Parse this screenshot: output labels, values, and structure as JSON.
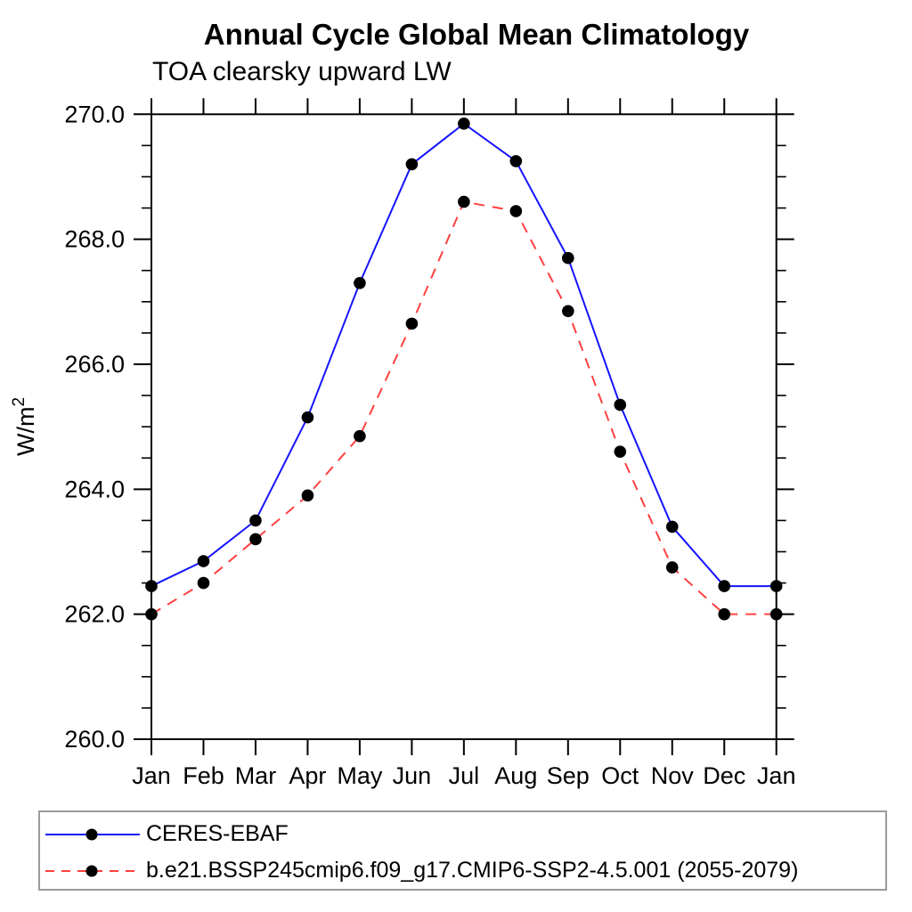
{
  "page": {
    "background": "#ffffff"
  },
  "chart_data": {
    "type": "line",
    "title": "Annual Cycle Global Mean Climatology",
    "subtitle": "TOA clearsky upward LW",
    "ylabel": {
      "base": "W/m",
      "exponent": "2"
    },
    "ylim": [
      260.0,
      270.0
    ],
    "ytick_labels": [
      "260.0",
      "262.0",
      "264.0",
      "266.0",
      "268.0",
      "270.0"
    ],
    "ytick_major_interval": 2.0,
    "ytick_minor_interval": 0.5,
    "categories": [
      "Jan",
      "Feb",
      "Mar",
      "Apr",
      "May",
      "Jun",
      "Jul",
      "Aug",
      "Sep",
      "Oct",
      "Nov",
      "Dec",
      "Jan"
    ],
    "grid": false,
    "legend_position": "bottom-left-box",
    "frame_color": "#000000",
    "series": [
      {
        "name": "CERES-EBAF",
        "color": "#1414ff",
        "line_style": "solid",
        "marker": "filled-circle",
        "marker_color": "#000000",
        "values": [
          262.45,
          262.85,
          263.5,
          265.15,
          267.3,
          269.2,
          269.85,
          269.25,
          267.7,
          265.35,
          263.4,
          262.45,
          262.45
        ]
      },
      {
        "name": "b.e21.BSSP245cmip6.f09_g17.CMIP6-SSP2-4.5.001 (2055-2079)",
        "color": "#ff4040",
        "line_style": "dashed",
        "marker": "filled-circle",
        "marker_color": "#000000",
        "values": [
          262.0,
          262.5,
          263.2,
          263.9,
          264.85,
          266.65,
          268.6,
          268.45,
          266.85,
          264.6,
          262.75,
          262.0,
          262.0
        ]
      }
    ]
  }
}
